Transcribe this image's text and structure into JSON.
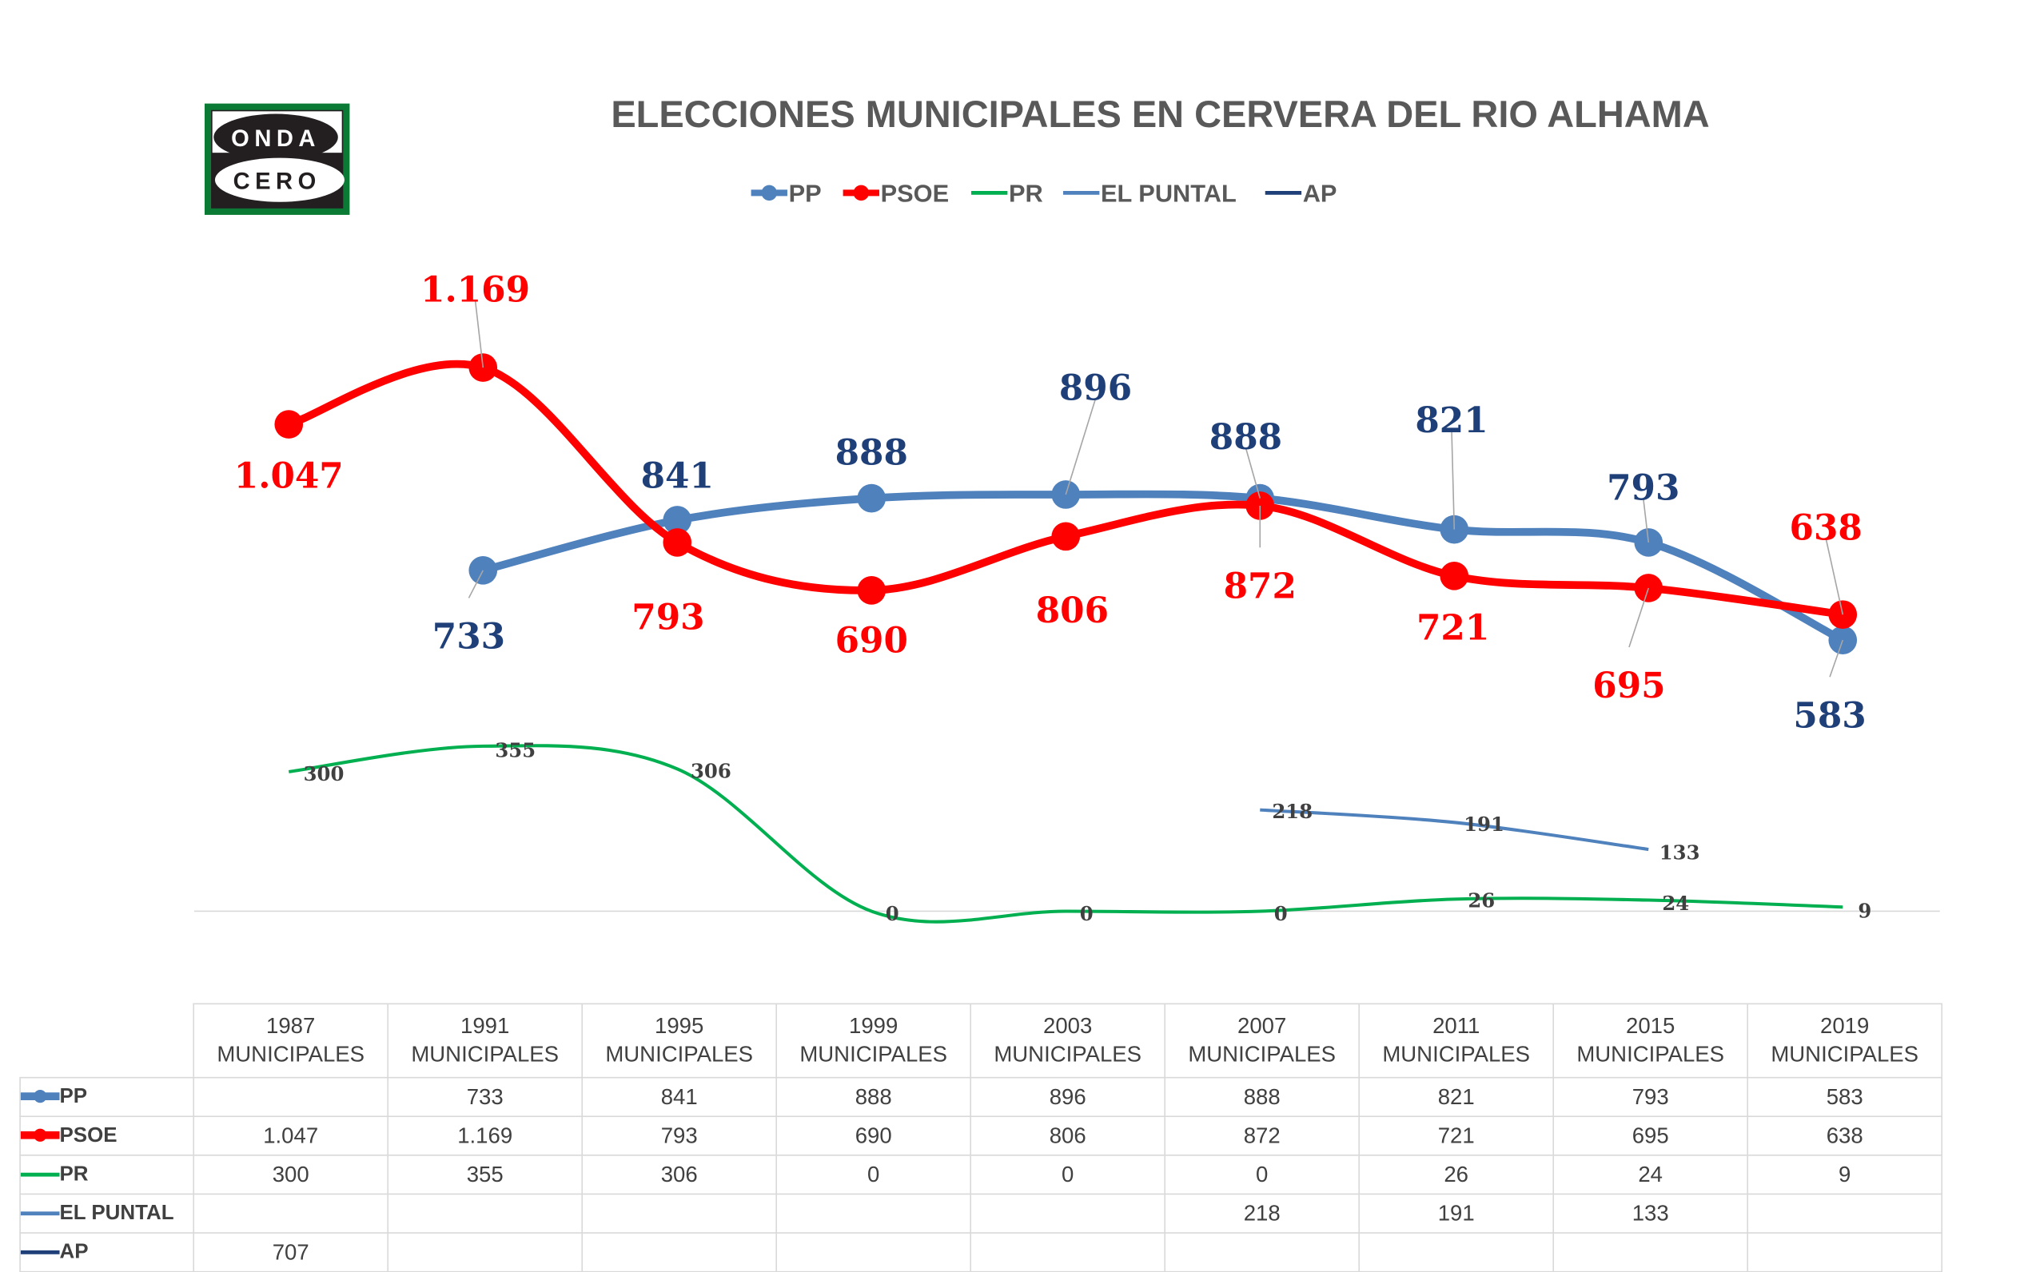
{
  "title": "ELECCIONES MUNICIPALES EN CERVERA DEL RIO ALHAMA",
  "logo": {
    "line1": "ONDA",
    "line2": "CERO",
    "colors": {
      "frame": "#0b7a35",
      "ink": "#231f20"
    }
  },
  "chart_data": {
    "type": "line",
    "title": "ELECCIONES MUNICIPALES EN CERVERA DEL RIO ALHAMA",
    "categories": [
      "1987 MUNICIPALES",
      "1991 MUNICIPALES",
      "1995 MUNICIPALES",
      "1999 MUNICIPALES",
      "2003 MUNICIPALES",
      "2007 MUNICIPALES",
      "2011 MUNICIPALES",
      "2015 MUNICIPALES",
      "2019 MUNICIPALES"
    ],
    "category_years": [
      "1987",
      "1991",
      "1995",
      "1999",
      "2003",
      "2007",
      "2011",
      "2015",
      "2019"
    ],
    "category_sub": "MUNICIPALES",
    "ylim": [
      0,
      1169
    ],
    "grid": false,
    "legend_position": "top",
    "smooth": true,
    "series": [
      {
        "name": "PP",
        "color": "#4f81bd",
        "markers": true,
        "label_color": "#1f3f78",
        "values": [
          null,
          733,
          841,
          888,
          896,
          888,
          821,
          793,
          583
        ],
        "labels": [
          "",
          "733",
          "841",
          "888",
          "896",
          "888",
          "821",
          "793",
          "583"
        ]
      },
      {
        "name": "PSOE",
        "color": "#ff0000",
        "markers": true,
        "label_color": "#ff0000",
        "values": [
          1047,
          1169,
          793,
          690,
          806,
          872,
          721,
          695,
          638
        ],
        "labels": [
          "1.047",
          "1.169",
          "793",
          "690",
          "806",
          "872",
          "721",
          "695",
          "638"
        ]
      },
      {
        "name": "PR",
        "color": "#00b050",
        "markers": false,
        "label_color": "#404040",
        "values": [
          300,
          355,
          306,
          0,
          0,
          0,
          26,
          24,
          9
        ],
        "labels": [
          "300",
          "355",
          "306",
          "0",
          "0",
          "0",
          "26",
          "24",
          "9"
        ]
      },
      {
        "name": "EL PUNTAL",
        "color": "#4f81bd",
        "markers": false,
        "label_color": "#404040",
        "values": [
          null,
          null,
          null,
          null,
          null,
          218,
          191,
          133,
          null
        ],
        "labels": [
          "",
          "",
          "",
          "",
          "",
          "218",
          "191",
          "133",
          ""
        ]
      },
      {
        "name": "AP",
        "color": "#1f3f78",
        "markers": false,
        "label_color": "#404040",
        "values": [
          707,
          null,
          null,
          null,
          null,
          null,
          null,
          null,
          null
        ],
        "labels": [
          "707",
          "",
          "",
          "",
          "",
          "",
          "",
          "",
          ""
        ]
      }
    ]
  }
}
